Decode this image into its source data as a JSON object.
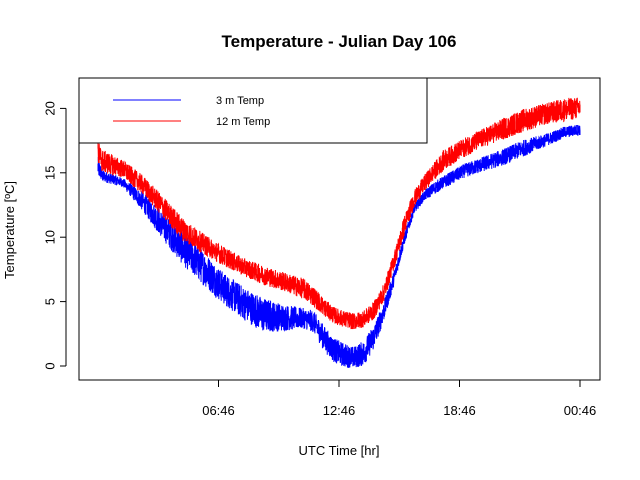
{
  "chart_data": {
    "type": "line",
    "title": "Temperature - Julian Day 106",
    "xlabel": "UTC Time [hr]",
    "ylabel": "Temperature [ºC]",
    "x_ticks": [
      "06:46",
      "12:46",
      "18:46",
      "00:46"
    ],
    "x_tick_hours": [
      6.767,
      12.767,
      18.767,
      24.767
    ],
    "xlim": [
      0.767,
      24.767
    ],
    "ylim": [
      0,
      22
    ],
    "y_ticks": [
      0,
      5,
      10,
      15,
      20
    ],
    "legend": {
      "position": "top-left",
      "entries": [
        "3 m Temp",
        "12 m Temp"
      ]
    },
    "grid": false,
    "series": [
      {
        "name": "3 m Temp",
        "color": "#0000ff",
        "x": [
          0.767,
          1.0,
          2.0,
          3.0,
          4.0,
          5.0,
          6.0,
          7.0,
          8.0,
          9.0,
          10.0,
          11.0,
          11.5,
          12.0,
          12.5,
          13.0,
          13.5,
          14.0,
          14.5,
          15.0,
          15.5,
          16.0,
          16.5,
          17.0,
          17.5,
          18.0,
          19.0,
          20.0,
          21.0,
          22.0,
          23.0,
          24.0,
          24.767
        ],
        "y_low": [
          14.6,
          14.3,
          13.9,
          12.0,
          9.8,
          7.8,
          6.3,
          4.8,
          3.6,
          2.6,
          2.7,
          2.9,
          2.6,
          1.2,
          0.3,
          -0.1,
          -0.2,
          0.0,
          1.3,
          3.5,
          6.2,
          9.3,
          11.8,
          12.8,
          13.3,
          13.8,
          14.6,
          15.1,
          15.6,
          16.3,
          17.0,
          17.7,
          17.9
        ],
        "y_high": [
          16.3,
          15.2,
          14.6,
          13.5,
          12.0,
          10.4,
          9.0,
          7.3,
          6.2,
          5.3,
          4.8,
          4.5,
          4.3,
          3.2,
          2.2,
          1.8,
          1.5,
          2.0,
          3.2,
          5.0,
          7.4,
          10.3,
          12.5,
          13.6,
          14.3,
          14.8,
          15.7,
          16.3,
          16.9,
          17.6,
          18.0,
          18.6,
          18.8
        ]
      },
      {
        "name": "12 m Temp",
        "color": "#ff0000",
        "x": [
          0.767,
          1.0,
          2.0,
          3.0,
          4.0,
          5.0,
          6.0,
          7.0,
          8.0,
          9.0,
          10.0,
          11.0,
          11.5,
          12.0,
          12.5,
          13.0,
          13.5,
          14.0,
          14.5,
          15.0,
          15.5,
          16.0,
          16.5,
          17.0,
          17.5,
          18.0,
          19.0,
          20.0,
          21.0,
          22.0,
          23.0,
          24.0,
          24.767
        ],
        "y_low": [
          15.5,
          15.0,
          14.6,
          13.3,
          11.5,
          9.7,
          8.7,
          7.8,
          7.0,
          6.3,
          5.8,
          5.2,
          4.6,
          3.9,
          3.3,
          3.0,
          2.8,
          3.0,
          3.6,
          5.0,
          7.5,
          10.0,
          12.3,
          13.5,
          14.4,
          15.2,
          16.2,
          17.0,
          17.6,
          18.2,
          18.7,
          19.0,
          19.2
        ],
        "y_high": [
          17.5,
          16.8,
          16.0,
          14.8,
          13.2,
          11.5,
          10.3,
          9.3,
          8.4,
          7.8,
          7.3,
          6.8,
          6.2,
          5.3,
          4.6,
          4.3,
          4.1,
          4.3,
          5.0,
          6.4,
          8.8,
          11.6,
          13.6,
          14.8,
          15.8,
          16.8,
          17.7,
          18.5,
          19.3,
          20.0,
          20.4,
          20.8,
          20.9
        ]
      }
    ]
  }
}
